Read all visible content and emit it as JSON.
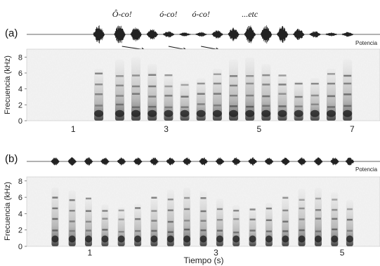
{
  "chart_data": [
    {
      "type": "heatmap",
      "panel": "(a)",
      "title": "",
      "xlabel": "",
      "ylabel": "Frecuencia (kHz)",
      "waveform_label": "Potencia",
      "xlim": [
        0,
        7.6
      ],
      "ylim": [
        0,
        9
      ],
      "x_ticks": [
        1,
        3,
        5,
        7
      ],
      "y_ticks": [
        0,
        2,
        4,
        6,
        8
      ],
      "pulses": [
        1.55,
        2.0,
        2.35,
        2.7,
        3.05,
        3.4,
        3.75,
        4.1,
        4.45,
        4.8,
        5.15,
        5.5,
        5.85,
        6.2,
        6.55,
        6.9
      ],
      "annotations": [
        {
          "text": "Ô-co!",
          "x": 2.05
        },
        {
          "text": "ó-co!",
          "x": 3.05
        },
        {
          "text": "ó-co!",
          "x": 3.75
        },
        {
          "text": "...etc",
          "x": 4.8
        }
      ],
      "arrows": [
        {
          "from": 2.05,
          "to": 2.55
        },
        {
          "from": 3.05,
          "to": 3.45
        },
        {
          "from": 3.75,
          "to": 4.15
        }
      ]
    },
    {
      "type": "heatmap",
      "panel": "(b)",
      "title": "",
      "xlabel": "Tiempo (s)",
      "ylabel": "Frecuencia (kHz)",
      "waveform_label": "Potencia",
      "xlim": [
        0,
        5.6
      ],
      "ylim": [
        0,
        8.5
      ],
      "x_ticks": [
        1,
        3,
        5
      ],
      "y_ticks": [
        0,
        2,
        4,
        6,
        8
      ],
      "pulses": [
        0.45,
        0.72,
        0.98,
        1.24,
        1.5,
        1.76,
        2.02,
        2.28,
        2.54,
        2.8,
        3.06,
        3.32,
        3.58,
        3.84,
        4.1,
        4.36,
        4.62,
        4.88,
        5.12
      ]
    }
  ]
}
